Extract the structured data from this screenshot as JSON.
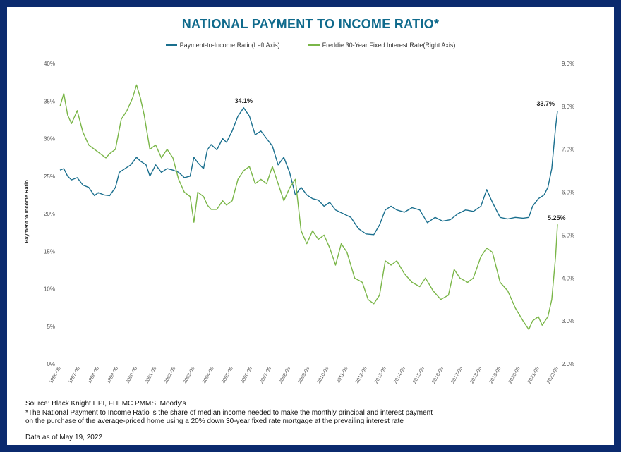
{
  "title": "NATIONAL PAYMENT TO INCOME RATIO*",
  "legend": {
    "pti": "Payment-to-Income Ratio(Left Axis)",
    "rate": "Freddie 30-Year Fixed Interest Rate(Right Axis)"
  },
  "colors": {
    "pti": "#1a6f8e",
    "rate": "#7ab648",
    "frame": "#0b2a6e",
    "title": "#0f6a8c"
  },
  "footer": {
    "source": "Source: Black Knight HPI, FHLMC PMMS, Moody's",
    "note_1": "*The National Payment to Income Ratio is the share of median income needed to make the monthly principal and interest payment",
    "note_2": "on the purchase of the average-priced home using a 20% down 30-year fixed rate mortgage at the prevailing interest rate",
    "as_of": "Data as of May 19, 2022"
  },
  "chart_data": {
    "type": "line",
    "ylabel": "Payment to Income Ratio",
    "y_left_ticks": [
      "0%",
      "5%",
      "10%",
      "15%",
      "20%",
      "25%",
      "30%",
      "35%",
      "40%"
    ],
    "y_right_ticks": [
      "2.0%",
      "3.0%",
      "4.0%",
      "5.0%",
      "6.0%",
      "7.0%",
      "8.0%",
      "9.0%"
    ],
    "ylim_left": [
      0,
      40
    ],
    "ylim_right": [
      2,
      9
    ],
    "x_ticks": [
      "1996-05",
      "1997-05",
      "1998-05",
      "1999-05",
      "2000-05",
      "2001-05",
      "2002-05",
      "2003-05",
      "2004-05",
      "2005-05",
      "2006-05",
      "2007-05",
      "2008-05",
      "2009-05",
      "2010-05",
      "2011-05",
      "2012-05",
      "2013-05",
      "2014-05",
      "2015-05",
      "2016-05",
      "2017-05",
      "2018-05",
      "2019-05",
      "2020-05",
      "2021-05",
      "2022-05"
    ],
    "xlim": [
      1996.4,
      2022.4
    ],
    "grid": false,
    "legend_position": "top",
    "series": [
      {
        "name": "Payment-to-Income Ratio(Left Axis)",
        "axis": "left",
        "x": [
          1996.4,
          1996.6,
          1996.8,
          1997.0,
          1997.3,
          1997.6,
          1997.9,
          1998.2,
          1998.4,
          1998.7,
          1999.0,
          1999.3,
          1999.5,
          1999.8,
          2000.1,
          2000.4,
          2000.6,
          2000.9,
          2001.1,
          2001.4,
          2001.7,
          2002.0,
          2002.3,
          2002.6,
          2002.9,
          2003.2,
          2003.4,
          2003.6,
          2003.9,
          2004.1,
          2004.3,
          2004.6,
          2004.9,
          2005.1,
          2005.4,
          2005.7,
          2006.0,
          2006.3,
          2006.6,
          2006.9,
          2007.2,
          2007.5,
          2007.8,
          2008.1,
          2008.4,
          2008.7,
          2009.0,
          2009.3,
          2009.6,
          2009.9,
          2010.2,
          2010.5,
          2010.8,
          2011.2,
          2011.6,
          2012.0,
          2012.4,
          2012.8,
          2013.1,
          2013.4,
          2013.7,
          2014.0,
          2014.4,
          2014.8,
          2015.2,
          2015.6,
          2016.0,
          2016.4,
          2016.8,
          2017.2,
          2017.6,
          2018.0,
          2018.4,
          2018.7,
          2019.0,
          2019.4,
          2019.8,
          2020.2,
          2020.6,
          2020.9,
          2021.1,
          2021.4,
          2021.7,
          2021.9,
          2022.1,
          2022.3,
          2022.4
        ],
        "values": [
          25.8,
          26.0,
          25.0,
          24.5,
          24.8,
          23.8,
          23.5,
          22.4,
          22.8,
          22.5,
          22.4,
          23.5,
          25.5,
          26.0,
          26.5,
          27.5,
          27.0,
          26.5,
          25.0,
          26.5,
          25.5,
          26.0,
          25.8,
          25.5,
          24.8,
          25.0,
          27.5,
          26.8,
          26.0,
          28.5,
          29.2,
          28.5,
          30.0,
          29.5,
          31.0,
          33.0,
          34.1,
          33.0,
          30.5,
          31.0,
          30.0,
          29.0,
          26.5,
          27.5,
          25.5,
          22.5,
          23.5,
          22.5,
          22.0,
          21.8,
          21.0,
          21.5,
          20.5,
          20.0,
          19.5,
          18.0,
          17.3,
          17.2,
          18.5,
          20.5,
          21.0,
          20.5,
          20.2,
          20.8,
          20.5,
          18.8,
          19.5,
          19.0,
          19.2,
          20.0,
          20.5,
          20.3,
          21.0,
          23.2,
          21.5,
          19.5,
          19.3,
          19.5,
          19.4,
          19.5,
          21.0,
          22.0,
          22.5,
          23.5,
          26.0,
          31.5,
          33.7
        ]
      },
      {
        "name": "Freddie 30-Year Fixed Interest Rate(Right Axis)",
        "axis": "right",
        "x": [
          1996.4,
          1996.6,
          1996.8,
          1997.0,
          1997.3,
          1997.6,
          1997.9,
          1998.2,
          1998.5,
          1998.8,
          1999.0,
          1999.3,
          1999.6,
          1999.9,
          2000.2,
          2000.4,
          2000.6,
          2000.8,
          2001.1,
          2001.4,
          2001.7,
          2002.0,
          2002.3,
          2002.6,
          2002.9,
          2003.2,
          2003.4,
          2003.6,
          2003.9,
          2004.1,
          2004.3,
          2004.6,
          2004.9,
          2005.1,
          2005.4,
          2005.7,
          2006.0,
          2006.3,
          2006.6,
          2006.9,
          2007.2,
          2007.5,
          2007.8,
          2008.1,
          2008.4,
          2008.7,
          2009.0,
          2009.3,
          2009.6,
          2009.9,
          2010.2,
          2010.5,
          2010.8,
          2011.1,
          2011.4,
          2011.8,
          2012.2,
          2012.5,
          2012.8,
          2013.1,
          2013.4,
          2013.7,
          2014.0,
          2014.4,
          2014.8,
          2015.2,
          2015.5,
          2015.9,
          2016.3,
          2016.7,
          2017.0,
          2017.3,
          2017.7,
          2018.0,
          2018.4,
          2018.7,
          2019.0,
          2019.4,
          2019.8,
          2020.2,
          2020.6,
          2020.9,
          2021.1,
          2021.4,
          2021.6,
          2021.9,
          2022.1,
          2022.3,
          2022.4
        ],
        "values": [
          8.0,
          8.3,
          7.8,
          7.6,
          7.9,
          7.4,
          7.1,
          7.0,
          6.9,
          6.8,
          6.9,
          7.0,
          7.7,
          7.9,
          8.2,
          8.5,
          8.2,
          7.8,
          7.0,
          7.1,
          6.8,
          7.0,
          6.8,
          6.3,
          6.0,
          5.9,
          5.3,
          6.0,
          5.9,
          5.7,
          5.6,
          5.6,
          5.8,
          5.7,
          5.8,
          6.3,
          6.5,
          6.6,
          6.2,
          6.3,
          6.2,
          6.6,
          6.2,
          5.8,
          6.1,
          6.3,
          5.1,
          4.8,
          5.1,
          4.9,
          5.0,
          4.7,
          4.3,
          4.8,
          4.6,
          4.0,
          3.9,
          3.5,
          3.4,
          3.6,
          4.4,
          4.3,
          4.4,
          4.1,
          3.9,
          3.8,
          4.0,
          3.7,
          3.5,
          3.6,
          4.2,
          4.0,
          3.9,
          4.0,
          4.5,
          4.7,
          4.6,
          3.9,
          3.7,
          3.3,
          3.0,
          2.8,
          3.0,
          3.1,
          2.9,
          3.1,
          3.5,
          4.5,
          5.25
        ]
      }
    ],
    "annotations": [
      {
        "text": "34.1%",
        "series": 0,
        "x": 2006.0,
        "value": 34.1
      },
      {
        "text": "33.7%",
        "series": 0,
        "x": 2022.4,
        "value": 33.7
      },
      {
        "text": "5.25%",
        "series": 1,
        "x": 2022.4,
        "value": 5.25
      }
    ]
  }
}
